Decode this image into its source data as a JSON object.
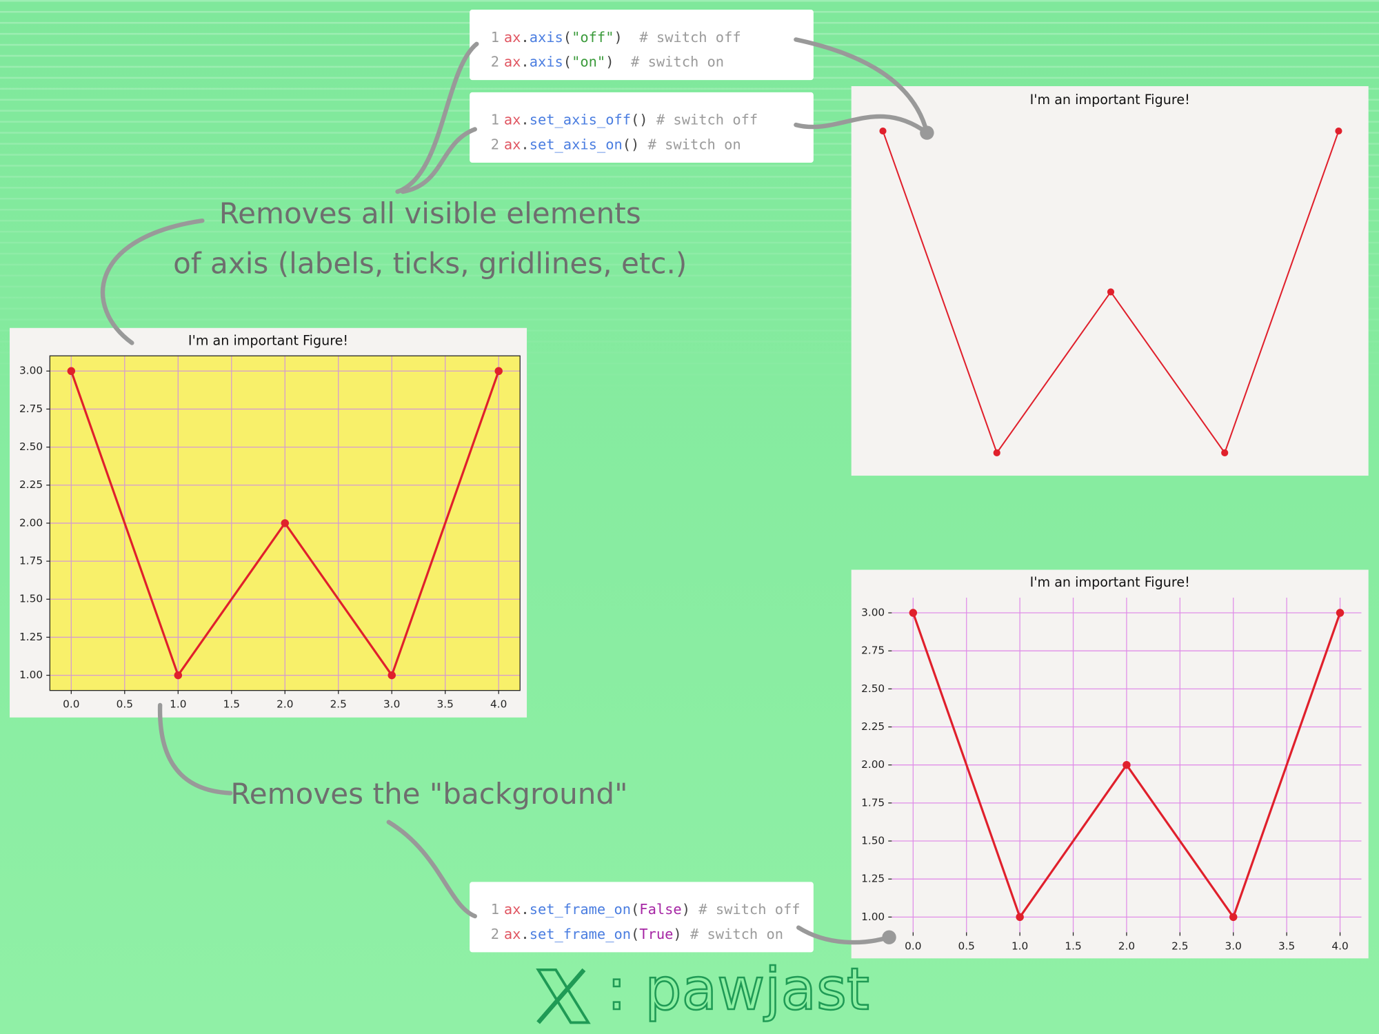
{
  "code_blocks": [
    {
      "lines": [
        {
          "number": "1",
          "tokens": [
            {
              "text": "ax",
              "color": "#e05561"
            },
            {
              "text": ".",
              "color": "#444444"
            },
            {
              "text": "axis",
              "color": "#4a7de0"
            },
            {
              "text": "(",
              "color": "#444444"
            },
            {
              "text": "\"off\"",
              "color": "#3a9a3a"
            },
            {
              "text": ")",
              "color": "#444444"
            },
            {
              "text": "  # switch off",
              "color": "#9a9a9a"
            }
          ]
        },
        {
          "number": "2",
          "tokens": [
            {
              "text": "ax",
              "color": "#e05561"
            },
            {
              "text": ".",
              "color": "#444444"
            },
            {
              "text": "axis",
              "color": "#4a7de0"
            },
            {
              "text": "(",
              "color": "#444444"
            },
            {
              "text": "\"on\"",
              "color": "#3a9a3a"
            },
            {
              "text": ")",
              "color": "#444444"
            },
            {
              "text": "  # switch on",
              "color": "#9a9a9a"
            }
          ]
        }
      ]
    },
    {
      "lines": [
        {
          "number": "1",
          "tokens": [
            {
              "text": "ax",
              "color": "#e05561"
            },
            {
              "text": ".",
              "color": "#444444"
            },
            {
              "text": "set_axis_off",
              "color": "#4a7de0"
            },
            {
              "text": "()",
              "color": "#444444"
            },
            {
              "text": " # switch off",
              "color": "#9a9a9a"
            }
          ]
        },
        {
          "number": "2",
          "tokens": [
            {
              "text": "ax",
              "color": "#e05561"
            },
            {
              "text": ".",
              "color": "#444444"
            },
            {
              "text": "set_axis_on",
              "color": "#4a7de0"
            },
            {
              "text": "()",
              "color": "#444444"
            },
            {
              "text": " # switch on",
              "color": "#9a9a9a"
            }
          ]
        }
      ]
    },
    {
      "lines": [
        {
          "number": "1",
          "tokens": [
            {
              "text": "ax",
              "color": "#e05561"
            },
            {
              "text": ".",
              "color": "#444444"
            },
            {
              "text": "set_frame_on",
              "color": "#4a7de0"
            },
            {
              "text": "(",
              "color": "#444444"
            },
            {
              "text": "False",
              "color": "#a626a4"
            },
            {
              "text": ")",
              "color": "#444444"
            },
            {
              "text": " # switch off",
              "color": "#9a9a9a"
            }
          ]
        },
        {
          "number": "2",
          "tokens": [
            {
              "text": "ax",
              "color": "#e05561"
            },
            {
              "text": ".",
              "color": "#444444"
            },
            {
              "text": "set_frame_on",
              "color": "#4a7de0"
            },
            {
              "text": "(",
              "color": "#444444"
            },
            {
              "text": "True",
              "color": "#a626a4"
            },
            {
              "text": ")",
              "color": "#444444"
            },
            {
              "text": " # switch on",
              "color": "#9a9a9a"
            }
          ]
        }
      ]
    }
  ],
  "annotations": [
    "Removes all visible elements",
    "of axis (labels, ticks, gridlines, etc.)",
    "Removes the \"background\""
  ],
  "chart_data": [
    {
      "type": "line",
      "title": "I'm an important Figure!",
      "x": [
        0,
        1,
        2,
        3,
        4
      ],
      "values": [
        3,
        1,
        2,
        1,
        3
      ],
      "color": "#e0202c",
      "xlim": [
        -0.2,
        4.2
      ],
      "ylim": [
        0.9,
        3.1
      ],
      "xticks": [
        {
          "value": 0,
          "label": "0.0"
        },
        {
          "value": 0.5,
          "label": "0.5"
        },
        {
          "value": 1,
          "label": "1.0"
        },
        {
          "value": 1.5,
          "label": "1.5"
        },
        {
          "value": 2,
          "label": "2.0"
        },
        {
          "value": 2.5,
          "label": "2.5"
        },
        {
          "value": 3,
          "label": "3.0"
        },
        {
          "value": 3.5,
          "label": "3.5"
        },
        {
          "value": 4,
          "label": "4.0"
        }
      ],
      "yticks": [
        {
          "value": 1,
          "label": "1.00"
        },
        {
          "value": 1.25,
          "label": "1.25"
        },
        {
          "value": 1.5,
          "label": "1.50"
        },
        {
          "value": 1.75,
          "label": "1.75"
        },
        {
          "value": 2,
          "label": "2.00"
        },
        {
          "value": 2.25,
          "label": "2.25"
        },
        {
          "value": 2.5,
          "label": "2.50"
        },
        {
          "value": 2.75,
          "label": "2.75"
        },
        {
          "value": 3,
          "label": "3.00"
        }
      ],
      "grid": true,
      "grid_color": "#d59bd0",
      "facecolor": "#f8f06a",
      "frame_on": true,
      "axis_on": true
    },
    {
      "type": "line",
      "title": "I'm an important Figure!",
      "x": [
        0,
        1,
        2,
        3,
        4
      ],
      "values": [
        3,
        1,
        2,
        1,
        3
      ],
      "color": "#e0202c",
      "xlim": [
        -0.2,
        4.2
      ],
      "ylim": [
        0.9,
        3.1
      ],
      "grid": false,
      "frame_on": false,
      "axis_on": false
    },
    {
      "type": "line",
      "title": "I'm an important Figure!",
      "x": [
        0,
        1,
        2,
        3,
        4
      ],
      "values": [
        3,
        1,
        2,
        1,
        3
      ],
      "color": "#e0202c",
      "xlim": [
        -0.2,
        4.2
      ],
      "ylim": [
        0.9,
        3.1
      ],
      "xticks": [
        {
          "value": 0,
          "label": "0.0"
        },
        {
          "value": 0.5,
          "label": "0.5"
        },
        {
          "value": 1,
          "label": "1.0"
        },
        {
          "value": 1.5,
          "label": "1.5"
        },
        {
          "value": 2,
          "label": "2.0"
        },
        {
          "value": 2.5,
          "label": "2.5"
        },
        {
          "value": 3,
          "label": "3.0"
        },
        {
          "value": 3.5,
          "label": "3.5"
        },
        {
          "value": 4,
          "label": "4.0"
        }
      ],
      "yticks": [
        {
          "value": 1,
          "label": "1.00"
        },
        {
          "value": 1.25,
          "label": "1.25"
        },
        {
          "value": 1.5,
          "label": "1.50"
        },
        {
          "value": 1.75,
          "label": "1.75"
        },
        {
          "value": 2,
          "label": "2.00"
        },
        {
          "value": 2.25,
          "label": "2.25"
        },
        {
          "value": 2.5,
          "label": "2.50"
        },
        {
          "value": 2.75,
          "label": "2.75"
        },
        {
          "value": 3,
          "label": "3.00"
        }
      ],
      "grid": true,
      "grid_color": "#e08ee8",
      "frame_on": false,
      "axis_on": true
    }
  ],
  "footer": {
    "handle": ": pawjast"
  }
}
